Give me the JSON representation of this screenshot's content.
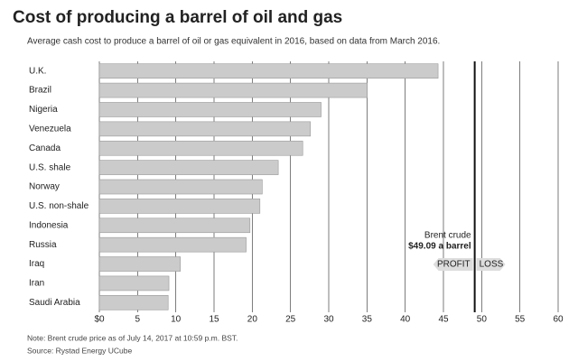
{
  "chart_data": {
    "type": "hbar",
    "title": "Cost of producing a barrel of oil and gas",
    "subtitle": "Average cash cost to produce a barrel of oil or gas equivalent in 2016, based on data from March 2016.",
    "categories": [
      "U.K.",
      "Brazil",
      "Nigeria",
      "Venezuela",
      "Canada",
      "U.S. shale",
      "Norway",
      "U.S. non-shale",
      "Indonesia",
      "Russia",
      "Iraq",
      "Iran",
      "Saudi Arabia"
    ],
    "values": [
      44.3,
      35,
      29,
      27.6,
      26.6,
      23.4,
      21.3,
      21,
      19.7,
      19.2,
      10.6,
      9.1,
      9
    ],
    "color": "#cbcbcb",
    "xlim": [
      0,
      60
    ],
    "xticks": [
      {
        "value": 0,
        "label": "$0"
      },
      5,
      10,
      15,
      20,
      25,
      30,
      35,
      40,
      45,
      50,
      55,
      60
    ],
    "grid": true,
    "reference_line": {
      "value": 49.09,
      "label": "Brent crude",
      "value_label": "$49.09 a barrel",
      "left_label": "PROFIT",
      "right_label": "LOSS"
    },
    "note": "Note: Brent crude price as of July 14, 2017 at 10:59 p.m. BST.",
    "source": "Source: Rystad Energy UCube"
  }
}
